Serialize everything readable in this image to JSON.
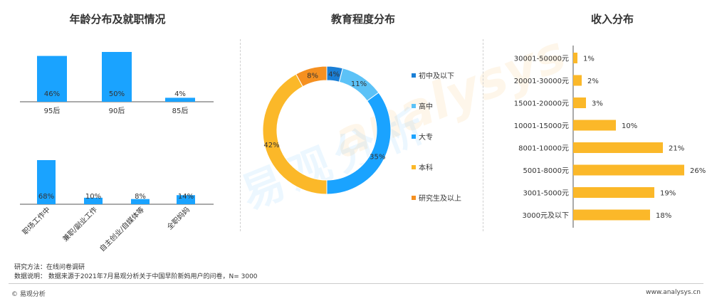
{
  "titles": {
    "age": "年龄分布及就职情况",
    "edu": "教育程度分布",
    "income": "收入分布"
  },
  "colors": {
    "blue": "#1aa3ff",
    "light_blue": "#5cc2f7",
    "dark_blue": "#1a7fd6",
    "orange": "#f5a623",
    "gold": "#fbb829",
    "deep_orange": "#f59020"
  },
  "chart_data": [
    {
      "type": "bar",
      "categories": [
        "95后",
        "90后",
        "85后"
      ],
      "values": [
        46,
        50,
        4
      ],
      "labels": [
        "46%",
        "50%",
        "4%"
      ],
      "ylim": [
        0,
        50
      ]
    },
    {
      "type": "bar",
      "categories": [
        "职场工作中",
        "兼职/副业工作",
        "自主创业/自媒体等",
        "全职妈妈"
      ],
      "values": [
        68,
        10,
        8,
        14
      ],
      "labels": [
        "68%",
        "10%",
        "8%",
        "14%"
      ],
      "ylim": [
        0,
        68
      ]
    },
    {
      "type": "pie",
      "categories": [
        "初中及以下",
        "高中",
        "大专",
        "本科",
        "研究生及以上"
      ],
      "values": [
        4,
        11,
        35,
        42,
        8
      ],
      "labels": [
        "4%",
        "11%",
        "35%",
        "42%",
        "8%"
      ],
      "legend": "right"
    },
    {
      "type": "bar",
      "orientation": "horizontal",
      "categories": [
        "30001-50000元",
        "20001-30000元",
        "15001-20000元",
        "10001-15000元",
        "8001-10000元",
        "5001-8000元",
        "3001-5000元",
        "3000元及以下"
      ],
      "values": [
        1,
        2,
        3,
        10,
        21,
        26,
        19,
        18
      ],
      "labels": [
        "1%",
        "2%",
        "3%",
        "10%",
        "21%",
        "26%",
        "19%",
        "18%"
      ],
      "xlim": [
        0,
        26
      ]
    }
  ],
  "footer": {
    "method": "研究方法：在线问卷调研",
    "data_note": "数据说明：   数据来源于2021年7月易观分析关于中国早阶新妈用户的问卷，N= 3000",
    "brand": "© 易观分析",
    "url": "www.analysys.cn"
  },
  "watermark": {
    "cn": "易观分析",
    "en": "analysys",
    "logo_name": "analysys-watermark"
  }
}
